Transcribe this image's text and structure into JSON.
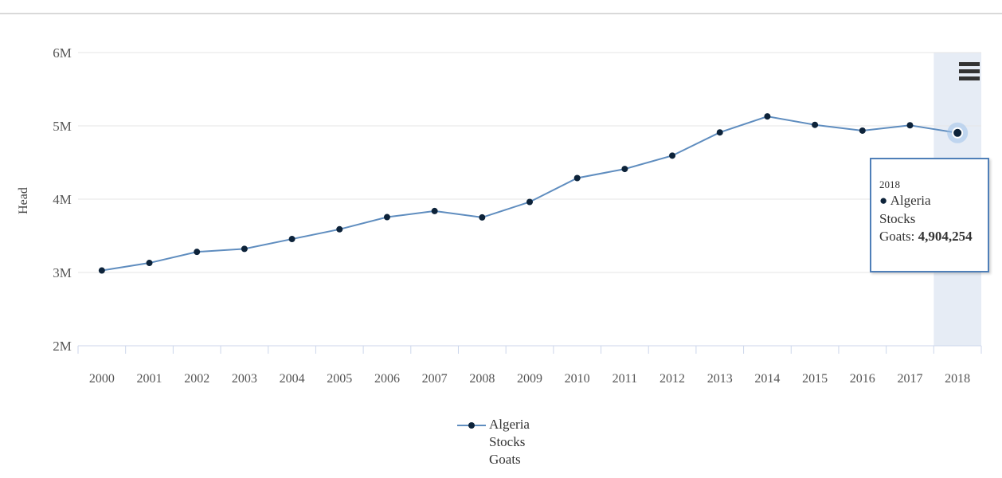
{
  "chart_data": {
    "type": "line",
    "title": "",
    "xlabel": "",
    "ylabel": "Head",
    "categories": [
      "2000",
      "2001",
      "2002",
      "2003",
      "2004",
      "2005",
      "2006",
      "2007",
      "2008",
      "2009",
      "2010",
      "2011",
      "2012",
      "2013",
      "2014",
      "2015",
      "2016",
      "2017",
      "2018"
    ],
    "series": [
      {
        "name_lines": [
          "Algeria",
          "Stocks",
          "Goats"
        ],
        "color": "#0d233a",
        "line_color": "#5f8dbf",
        "values": [
          3027000,
          3130000,
          3281000,
          3322000,
          3456000,
          3589000,
          3755000,
          3838000,
          3751000,
          3962000,
          4288000,
          4412000,
          4594000,
          4911000,
          5129000,
          5014000,
          4935000,
          5008000,
          4904254
        ]
      }
    ],
    "y_ticks": [
      "2M",
      "3M",
      "4M",
      "5M",
      "6M"
    ],
    "ylim": [
      2000000,
      6000000
    ],
    "grid": true,
    "legend_position": "bottom-center",
    "highlighted_category": "2018",
    "tooltip": {
      "x": "2018",
      "series_line_1": "Algeria",
      "series_line_2": "Stocks",
      "value_prefix": "Goats: ",
      "value": "4,904,254"
    }
  },
  "icons": {
    "menu": "hamburger-menu-icon"
  }
}
